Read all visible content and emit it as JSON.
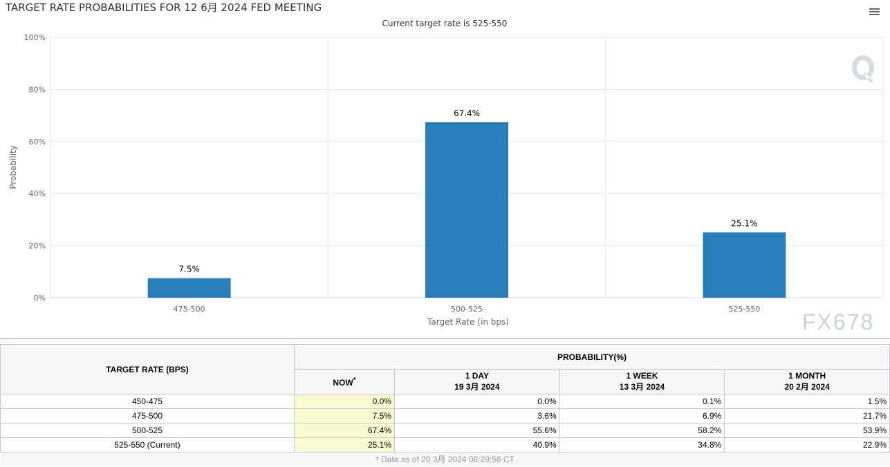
{
  "chart_data": {
    "type": "bar",
    "title": "TARGET RATE PROBABILITIES FOR 12 6月 2024 FED MEETING",
    "subtitle": "Current target rate is 525-550",
    "xlabel": "Target Rate (in bps)",
    "ylabel": "Probability",
    "categories": [
      "475-500",
      "500-525",
      "525-550"
    ],
    "values": [
      7.5,
      67.4,
      25.1
    ],
    "data_labels": [
      "7.5%",
      "67.4%",
      "25.1%"
    ],
    "ylim": [
      0,
      100
    ],
    "yticks": [
      "0%",
      "20%",
      "40%",
      "60%",
      "80%",
      "100%"
    ],
    "grid": true,
    "color": "#2a7fba"
  },
  "table": {
    "header_rate": "TARGET RATE (BPS)",
    "header_prob": "PROBABILITY(%)",
    "cols": [
      {
        "l1": "NOW",
        "l2": "*"
      },
      {
        "l1": "1 DAY",
        "l2": "19 3月 2024"
      },
      {
        "l1": "1 WEEK",
        "l2": "13 3月 2024"
      },
      {
        "l1": "1 MONTH",
        "l2": "20 2月 2024"
      }
    ],
    "rows": [
      {
        "rate": "450-475",
        "v": [
          "0.0%",
          "0.0%",
          "0.1%",
          "1.5%"
        ]
      },
      {
        "rate": "475-500",
        "v": [
          "7.5%",
          "3.6%",
          "6.9%",
          "21.7%"
        ]
      },
      {
        "rate": "500-525",
        "v": [
          "67.4%",
          "55.6%",
          "58.2%",
          "53.9%"
        ]
      },
      {
        "rate": "525-550 (Current)",
        "v": [
          "25.1%",
          "40.9%",
          "34.8%",
          "22.9%"
        ]
      }
    ],
    "footnote": "* Data as of 20 3月 2024 06:29:56 CT"
  },
  "watermark": "FX678",
  "menu_icon": "hamburger-menu-icon"
}
